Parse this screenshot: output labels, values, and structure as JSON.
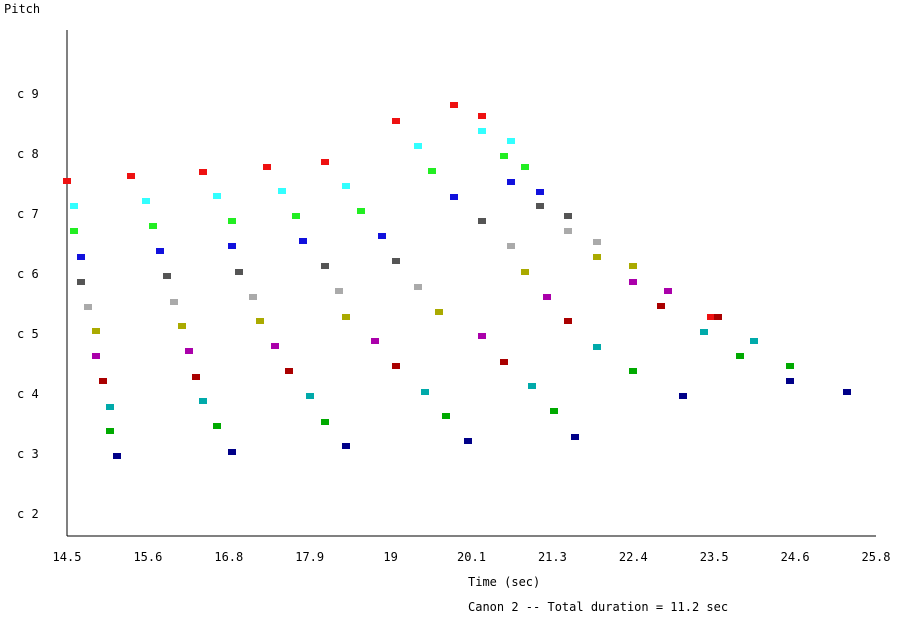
{
  "chart_data": {
    "type": "scatter",
    "title": "",
    "xlabel": "Time (sec)",
    "ylabel": "Pitch",
    "caption": "Canon 2 -- Total duration = 11.2 sec",
    "x_ticks": [
      "14.5",
      "15.6",
      "16.8",
      "17.9",
      "19",
      "20.1",
      "21.3",
      "22.4",
      "23.5",
      "24.6",
      "25.8"
    ],
    "y_ticks": [
      "c 2",
      "c 3",
      "c 4",
      "c 5",
      "c 6",
      "c 7",
      "c 8",
      "c 9"
    ],
    "xlim": [
      14.5,
      25.8
    ],
    "ylim_octave": [
      1.6,
      9.7
    ],
    "grid": false,
    "legend": "none",
    "voices": [
      {
        "color": "#ee1111",
        "points": [
          [
            14.5,
            7.55
          ],
          [
            15.4,
            7.63
          ],
          [
            16.4,
            7.7
          ],
          [
            17.3,
            7.79
          ],
          [
            18.1,
            7.87
          ],
          [
            19.1,
            8.55
          ],
          [
            19.9,
            8.81
          ],
          [
            20.3,
            8.63
          ],
          [
            23.5,
            5.29
          ]
        ]
      },
      {
        "color": "#33ffff",
        "points": [
          [
            14.6,
            7.13
          ],
          [
            15.6,
            7.22
          ],
          [
            16.6,
            7.3
          ],
          [
            17.5,
            7.39
          ],
          [
            18.4,
            7.47
          ],
          [
            19.4,
            8.13
          ],
          [
            20.3,
            8.38
          ],
          [
            20.7,
            8.21
          ],
          [
            24.1,
            4.88
          ]
        ]
      },
      {
        "color": "#22ee22",
        "points": [
          [
            14.6,
            6.71
          ],
          [
            15.7,
            6.8
          ],
          [
            16.8,
            6.88
          ],
          [
            17.7,
            6.97
          ],
          [
            18.6,
            7.05
          ],
          [
            19.6,
            7.71
          ],
          [
            20.6,
            7.96
          ],
          [
            20.9,
            7.79
          ],
          [
            24.6,
            4.46
          ]
        ]
      },
      {
        "color": "#1111dd",
        "points": [
          [
            14.7,
            6.29
          ],
          [
            15.8,
            6.38
          ],
          [
            16.8,
            6.46
          ],
          [
            17.8,
            6.55
          ],
          [
            18.9,
            6.63
          ],
          [
            19.9,
            7.29
          ],
          [
            20.7,
            7.54
          ],
          [
            21.1,
            7.37
          ]
        ]
      },
      {
        "color": "#555555",
        "points": [
          [
            14.7,
            5.87
          ],
          [
            15.9,
            5.96
          ],
          [
            16.9,
            6.04
          ],
          [
            18.1,
            6.13
          ],
          [
            19.1,
            6.21
          ],
          [
            20.3,
            6.88
          ],
          [
            21.1,
            7.13
          ],
          [
            21.5,
            6.96
          ]
        ]
      },
      {
        "color": "#aaaaaa",
        "points": [
          [
            14.8,
            5.45
          ],
          [
            16.0,
            5.54
          ],
          [
            17.1,
            5.62
          ],
          [
            18.3,
            5.71
          ],
          [
            19.4,
            5.79
          ],
          [
            20.7,
            6.46
          ],
          [
            21.5,
            6.71
          ],
          [
            21.9,
            6.54
          ]
        ]
      },
      {
        "color": "#aaaa00",
        "points": [
          [
            14.9,
            5.05
          ],
          [
            16.1,
            5.13
          ],
          [
            17.2,
            5.22
          ],
          [
            18.4,
            5.29
          ],
          [
            19.7,
            5.37
          ],
          [
            20.9,
            6.04
          ],
          [
            21.9,
            6.29
          ],
          [
            22.4,
            6.13
          ]
        ]
      },
      {
        "color": "#aa00aa",
        "points": [
          [
            14.9,
            4.63
          ],
          [
            16.2,
            4.71
          ],
          [
            17.4,
            4.8
          ],
          [
            18.8,
            4.88
          ],
          [
            20.3,
            4.96
          ],
          [
            21.2,
            5.62
          ],
          [
            22.4,
            5.87
          ],
          [
            22.9,
            5.71
          ]
        ]
      },
      {
        "color": "#aa0000",
        "points": [
          [
            15.0,
            4.21
          ],
          [
            16.3,
            4.29
          ],
          [
            17.6,
            4.38
          ],
          [
            19.1,
            4.46
          ],
          [
            20.6,
            4.54
          ],
          [
            21.5,
            5.21
          ],
          [
            22.8,
            5.46
          ],
          [
            23.6,
            5.29
          ]
        ]
      },
      {
        "color": "#00aaaa",
        "points": [
          [
            15.1,
            3.79
          ],
          [
            16.4,
            3.88
          ],
          [
            17.9,
            3.96
          ],
          [
            19.5,
            4.04
          ],
          [
            21.0,
            4.13
          ],
          [
            21.9,
            4.79
          ],
          [
            23.4,
            5.04
          ],
          [
            24.1,
            4.88
          ]
        ]
      },
      {
        "color": "#00aa00",
        "points": [
          [
            15.1,
            3.38
          ],
          [
            16.6,
            3.46
          ],
          [
            18.1,
            3.54
          ],
          [
            19.8,
            3.63
          ],
          [
            21.3,
            3.71
          ],
          [
            22.4,
            4.38
          ],
          [
            23.9,
            4.63
          ],
          [
            24.6,
            4.46
          ]
        ]
      },
      {
        "color": "#000088",
        "points": [
          [
            15.2,
            2.96
          ],
          [
            16.8,
            3.04
          ],
          [
            18.4,
            3.13
          ],
          [
            20.1,
            3.21
          ],
          [
            21.6,
            3.29
          ],
          [
            23.1,
            3.96
          ],
          [
            24.6,
            4.21
          ],
          [
            25.4,
            4.04
          ]
        ]
      }
    ]
  }
}
